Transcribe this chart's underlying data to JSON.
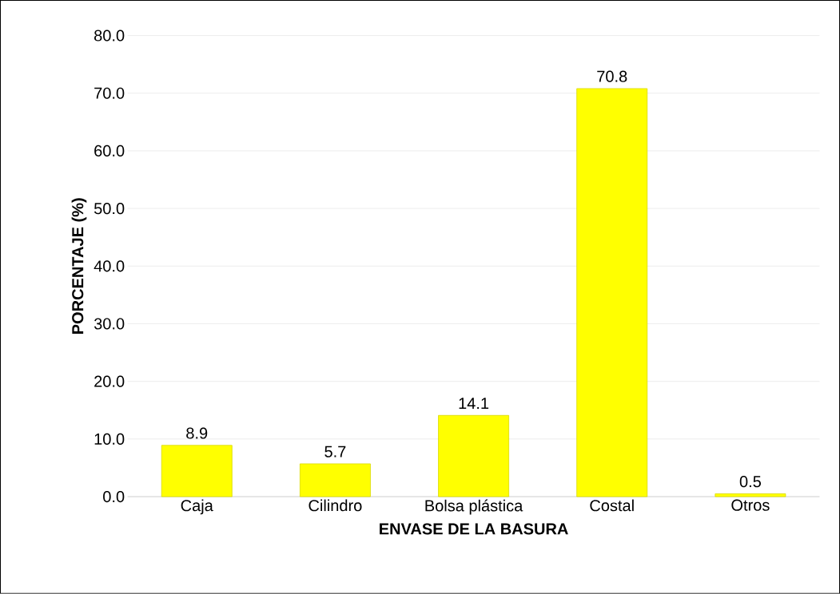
{
  "chart_data": {
    "type": "bar",
    "xlabel": "ENVASE DE LA BASURA",
    "ylabel": "PORCENTAJE (%)",
    "categories": [
      "Caja",
      "Cilindro",
      "Bolsa plástica",
      "Costal",
      "Otros"
    ],
    "values": [
      8.9,
      5.7,
      14.1,
      70.8,
      0.5
    ],
    "value_labels": [
      "8.9",
      "5.7",
      "14.1",
      "70.8",
      "0.5"
    ],
    "color": "#ffff00",
    "ylim": [
      0,
      80
    ],
    "yticks": [
      {
        "value": 0,
        "label": "0.0"
      },
      {
        "value": 10,
        "label": "10.0"
      },
      {
        "value": 20,
        "label": "20.0"
      },
      {
        "value": 30,
        "label": "30.0"
      },
      {
        "value": 40,
        "label": "40.0"
      },
      {
        "value": 50,
        "label": "50.0"
      },
      {
        "value": 60,
        "label": "60.0"
      },
      {
        "value": 70,
        "label": "70.0"
      },
      {
        "value": 80,
        "label": "80.0"
      }
    ],
    "grid": "y"
  }
}
